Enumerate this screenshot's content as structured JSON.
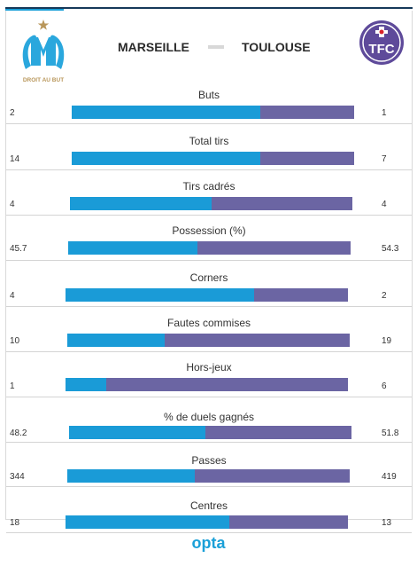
{
  "header": {
    "home_team": "MARSEILLE",
    "away_team": "TOULOUSE",
    "home_logo_motto": "DROIT AU BUT",
    "away_logo_text": "TFC"
  },
  "colors": {
    "home": "#1a9bd7",
    "away": "#6b65a3"
  },
  "stats": [
    {
      "label": "Buts",
      "home": "2",
      "away": "1",
      "home_share": 0.667
    },
    {
      "label": "Total tirs",
      "home": "14",
      "away": "7",
      "home_share": 0.667
    },
    {
      "label": "Tirs cadrés",
      "home": "4",
      "away": "4",
      "home_share": 0.5
    },
    {
      "label": "Possession (%)",
      "home": "45.7",
      "away": "54.3",
      "home_share": 0.457
    },
    {
      "label": "Corners",
      "home": "4",
      "away": "2",
      "home_share": 0.667
    },
    {
      "label": "Fautes commises",
      "home": "10",
      "away": "19",
      "home_share": 0.345
    },
    {
      "label": "Hors-jeux",
      "home": "1",
      "away": "6",
      "home_share": 0.143
    },
    {
      "label": "% de duels gagnés",
      "home": "48.2",
      "away": "51.8",
      "home_share": 0.482
    },
    {
      "label": "Passes",
      "home": "344",
      "away": "419",
      "home_share": 0.451
    },
    {
      "label": "Centres",
      "home": "18",
      "away": "13",
      "home_share": 0.581
    }
  ],
  "footer": {
    "brand": "opta"
  }
}
